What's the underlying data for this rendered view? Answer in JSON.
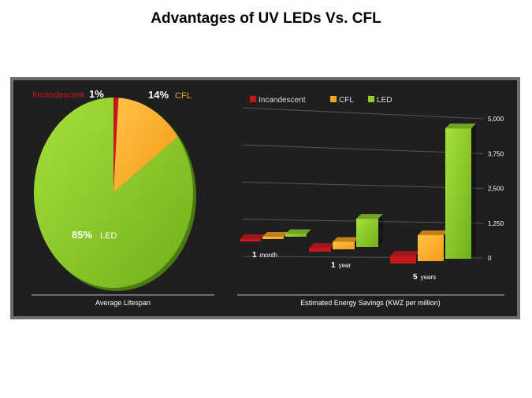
{
  "title": "Advantages of UV LEDs Vs. CFL",
  "colors": {
    "incandescent": "#c8161d",
    "cfl": "#f7a21b",
    "led": "#8fcf2a",
    "panel_bg": "#1f1f1f",
    "panel_border": "#6e6e6e"
  },
  "chart_data": [
    {
      "type": "pie",
      "title": "Average Lifespan",
      "slices": [
        {
          "name": "Incandescent",
          "value": 1,
          "label": "1%"
        },
        {
          "name": "CFL",
          "value": 14,
          "label": "14%"
        },
        {
          "name": "LED",
          "value": 85,
          "label": "85%"
        }
      ]
    },
    {
      "type": "bar",
      "title": "Estimated Energy Savings (KWZ per million)",
      "legend": [
        "Incandescent",
        "CFL",
        "LED"
      ],
      "legend_position": "top-left",
      "categories": [
        {
          "num": "1",
          "unit": "month"
        },
        {
          "num": "1",
          "unit": "year"
        },
        {
          "num": "5",
          "unit": "years"
        }
      ],
      "series": [
        {
          "name": "Incandescent",
          "values": [
            40,
            150,
            280
          ]
        },
        {
          "name": "CFL",
          "values": [
            80,
            300,
            950
          ]
        },
        {
          "name": "LED",
          "values": [
            120,
            1150,
            4850
          ]
        }
      ],
      "yticks": [
        "5,000",
        "3,750",
        "2,500",
        "1,250",
        "0"
      ],
      "ylim": [
        0,
        5000
      ]
    }
  ]
}
